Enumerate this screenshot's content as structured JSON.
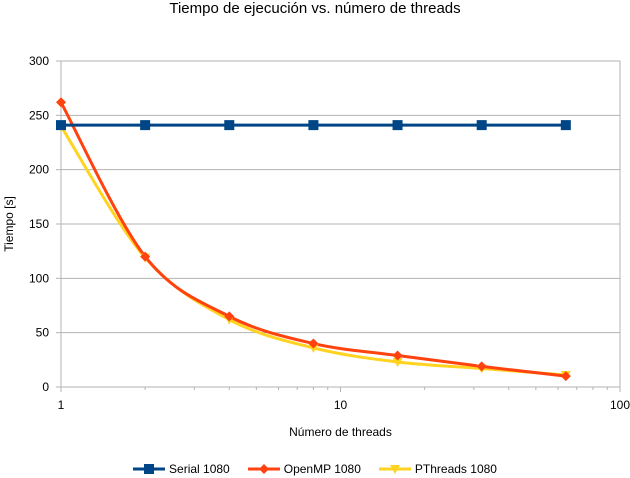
{
  "chart_data": {
    "type": "line",
    "title": "Tiempo de ejecución vs. número de threads",
    "xlabel": "Número de threads",
    "ylabel": "Tiempo [s]",
    "xscale": "log",
    "xlim": [
      1,
      100
    ],
    "ylim": [
      0,
      300
    ],
    "x_ticks": [
      1,
      10,
      100
    ],
    "y_ticks": [
      0,
      50,
      100,
      150,
      200,
      250,
      300
    ],
    "grid": "horizontal",
    "legend_position": "bottom",
    "series": [
      {
        "name": "Serial 1080",
        "color": "#004586",
        "marker": "square",
        "x": [
          1,
          2,
          4,
          8,
          16,
          32,
          64
        ],
        "y": [
          241,
          241,
          241,
          241,
          241,
          241,
          241
        ]
      },
      {
        "name": "OpenMP 1080",
        "color": "#ff420e",
        "marker": "diamond",
        "x": [
          1,
          2,
          4,
          8,
          16,
          32,
          64
        ],
        "y": [
          262,
          120,
          65,
          40,
          29,
          19,
          10
        ]
      },
      {
        "name": "PThreads 1080",
        "color": "#ffd320",
        "marker": "triangle-down",
        "x": [
          1,
          2,
          4,
          8,
          16,
          32,
          64
        ],
        "y": [
          240,
          119,
          62,
          36,
          23,
          17,
          11
        ]
      }
    ]
  }
}
